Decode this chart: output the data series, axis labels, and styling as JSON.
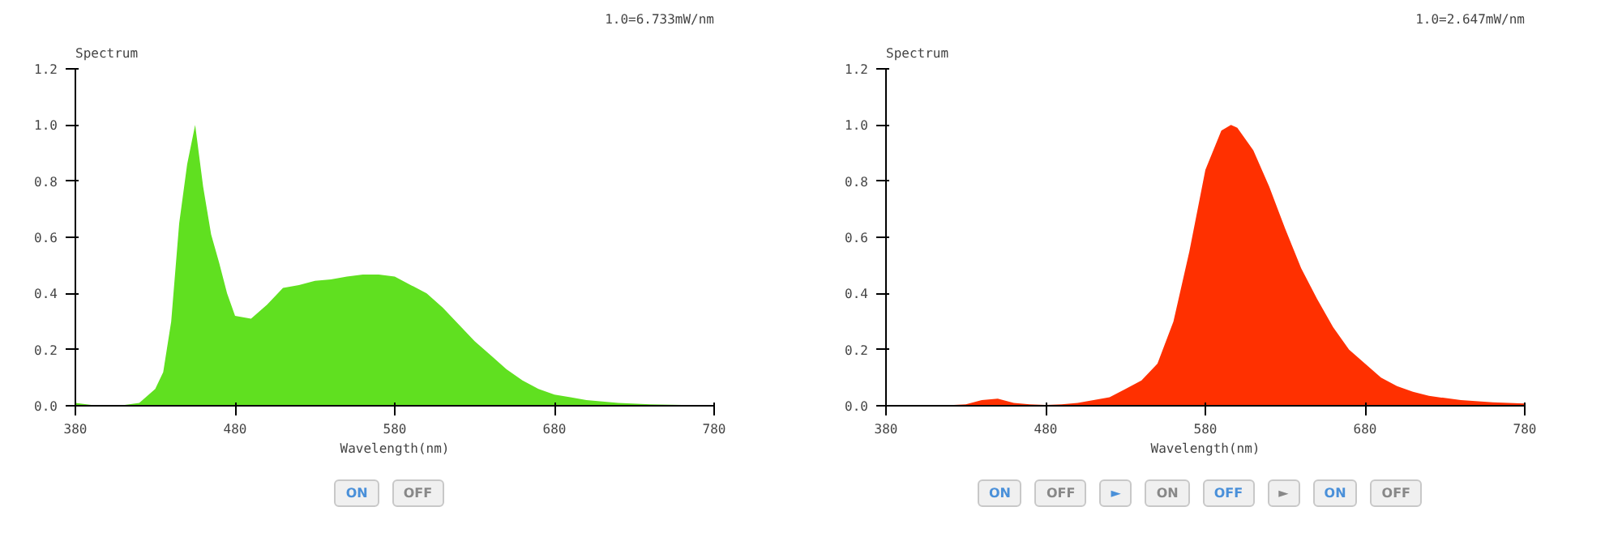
{
  "chart_data": [
    {
      "type": "area",
      "title": "1.0=6.733mW/nm",
      "ylabel": "Spectrum",
      "xlabel": "Wavelength(nm)",
      "xlim": [
        380,
        780
      ],
      "xticks": [
        380,
        480,
        580,
        680,
        780
      ],
      "ylim": [
        0,
        1.2
      ],
      "yticks": [
        {
          "value": 0,
          "label": "0.0"
        },
        {
          "value": 0.2,
          "label": "0.2"
        },
        {
          "value": 0.4,
          "label": "0.4"
        },
        {
          "value": 0.6,
          "label": "0.6"
        },
        {
          "value": 0.8,
          "label": "0.8"
        },
        {
          "value": 1,
          "label": "1.0"
        },
        {
          "value": 1.2,
          "label": "1.2"
        }
      ],
      "grid": false,
      "annotations": [
        "ON",
        "OFF"
      ],
      "x": [
        380,
        390,
        400,
        410,
        420,
        430,
        435,
        440,
        445,
        450,
        455,
        460,
        465,
        470,
        475,
        480,
        490,
        500,
        510,
        520,
        530,
        540,
        550,
        560,
        570,
        580,
        590,
        600,
        610,
        620,
        630,
        640,
        650,
        660,
        670,
        680,
        690,
        700,
        720,
        740,
        760,
        780
      ],
      "series": [
        {
          "color": "#60e020",
          "values": [
            0.01,
            0.003,
            0.002,
            0.002,
            0.01,
            0.06,
            0.12,
            0.3,
            0.65,
            0.86,
            1.0,
            0.78,
            0.61,
            0.51,
            0.4,
            0.32,
            0.31,
            0.36,
            0.42,
            0.43,
            0.445,
            0.45,
            0.46,
            0.467,
            0.467,
            0.46,
            0.43,
            0.4,
            0.35,
            0.29,
            0.23,
            0.18,
            0.13,
            0.09,
            0.06,
            0.04,
            0.03,
            0.02,
            0.01,
            0.005,
            0.003,
            0.002
          ]
        }
      ]
    },
    {
      "type": "area",
      "title": "1.0=2.647mW/nm",
      "ylabel": "Spectrum",
      "xlabel": "Wavelength(nm)",
      "xlim": [
        380,
        780
      ],
      "xticks": [
        380,
        480,
        580,
        680,
        780
      ],
      "ylim": [
        0,
        1.2
      ],
      "yticks": [
        {
          "value": 0,
          "label": "0.0"
        },
        {
          "value": 0.2,
          "label": "0.2"
        },
        {
          "value": 0.4,
          "label": "0.4"
        },
        {
          "value": 0.6,
          "label": "0.6"
        },
        {
          "value": 0.8,
          "label": "0.8"
        },
        {
          "value": 1,
          "label": "1.0"
        },
        {
          "value": 1.2,
          "label": "1.2"
        }
      ],
      "grid": false,
      "annotations": [
        "ON",
        "OFF",
        "►",
        "ON",
        "OFF",
        "►",
        "ON",
        "OFF"
      ],
      "x": [
        380,
        400,
        420,
        430,
        440,
        450,
        460,
        470,
        480,
        490,
        500,
        510,
        520,
        530,
        540,
        550,
        560,
        570,
        580,
        590,
        596,
        600,
        610,
        620,
        630,
        640,
        650,
        660,
        670,
        680,
        690,
        700,
        710,
        720,
        740,
        760,
        780
      ],
      "series": [
        {
          "color": "#ff3000",
          "values": [
            0.0,
            0.0,
            0.002,
            0.005,
            0.02,
            0.025,
            0.01,
            0.005,
            0.003,
            0.005,
            0.01,
            0.02,
            0.03,
            0.06,
            0.09,
            0.15,
            0.3,
            0.55,
            0.84,
            0.98,
            1.0,
            0.99,
            0.91,
            0.78,
            0.63,
            0.49,
            0.38,
            0.28,
            0.2,
            0.15,
            0.1,
            0.07,
            0.05,
            0.035,
            0.02,
            0.012,
            0.008
          ]
        }
      ]
    }
  ]
}
